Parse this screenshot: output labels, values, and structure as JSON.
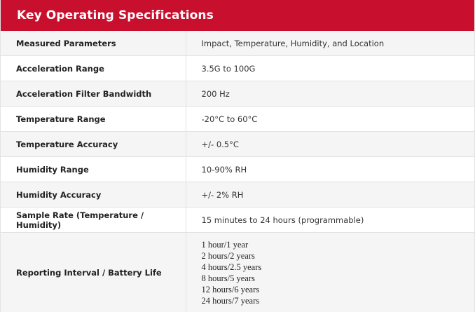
{
  "title": "Key Operating Specifications",
  "rows": [
    {
      "label": "Measured Parameters",
      "value": "Impact, Temperature, Humidity, and Location"
    },
    {
      "label": "Acceleration Range",
      "value": "3.5G to 100G"
    },
    {
      "label": "Acceleration Filter Bandwidth",
      "value": "200 Hz"
    },
    {
      "label": "Temperature Range",
      "value": "-20°C to 60°C"
    },
    {
      "label": "Temperature Accuracy",
      "value": "+/- 0.5°C"
    },
    {
      "label": "Humidity Range",
      "value": "10-90% RH"
    },
    {
      "label": "Humidity Accuracy",
      "value": "+/- 2% RH"
    },
    {
      "label": "Sample Rate (Temperature / Humidity)",
      "value": "15 minutes to 24 hours (programmable)"
    }
  ],
  "reporting": {
    "label": "Reporting Interval / Battery Life",
    "values": [
      "1 hour/1 year",
      "2 hours/2 years",
      "4 hours/2.5 years",
      "8 hours/5 years",
      "12 hours/6 years",
      "24 hours/7 years"
    ]
  },
  "colors": {
    "header_bg": "#c8102e",
    "header_text": "#ffffff",
    "alt_row_bg": "#f5f5f5"
  }
}
